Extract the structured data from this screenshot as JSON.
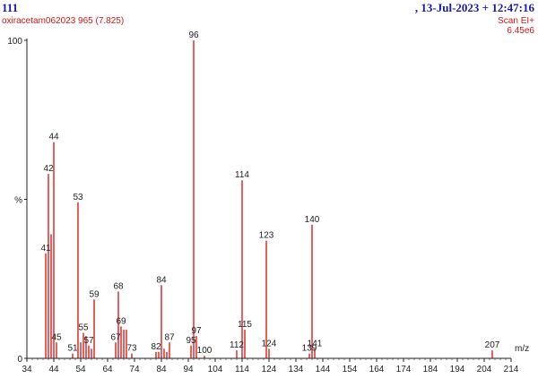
{
  "header": {
    "sample_id": "111",
    "sample_name": "oxiracetam062023 965 (7.825)",
    "date_time": ",  13-Jul-2023 + 12:47:16",
    "scan_mode": "Scan EI+",
    "intensity": "6.45e6"
  },
  "colors": {
    "bars": "#e23a3a",
    "axis": "#222222",
    "header_blue": "#1a1aa8",
    "header_red": "#d01818"
  },
  "chart_data": {
    "type": "bar",
    "title": "",
    "xlabel": "m/z",
    "ylabel": "%",
    "xlim": [
      34,
      214
    ],
    "ylim": [
      0,
      100
    ],
    "x_ticks": [
      34,
      44,
      54,
      64,
      74,
      84,
      94,
      104,
      114,
      124,
      134,
      144,
      154,
      164,
      174,
      184,
      194,
      204,
      214
    ],
    "x_tick_labels": [
      "34",
      "44",
      "54",
      "64",
      "74",
      "84",
      "94",
      "104",
      "114",
      "124",
      "134",
      "144",
      "154",
      "164",
      "174",
      "184",
      "194",
      "204",
      "214"
    ],
    "y_ticks": [
      0,
      50,
      100
    ],
    "y_tick_labels": [
      "0",
      "%",
      "100"
    ],
    "peaks": [
      {
        "mz": 41,
        "rel": 33
      },
      {
        "mz": 42,
        "rel": 58
      },
      {
        "mz": 43,
        "rel": 39
      },
      {
        "mz": 44,
        "rel": 68
      },
      {
        "mz": 45,
        "rel": 5
      },
      {
        "mz": 51,
        "rel": 1.5
      },
      {
        "mz": 53,
        "rel": 49
      },
      {
        "mz": 54,
        "rel": 5
      },
      {
        "mz": 55,
        "rel": 8
      },
      {
        "mz": 56,
        "rel": 7
      },
      {
        "mz": 57,
        "rel": 4
      },
      {
        "mz": 58,
        "rel": 3
      },
      {
        "mz": 59,
        "rel": 18.5
      },
      {
        "mz": 67,
        "rel": 5
      },
      {
        "mz": 68,
        "rel": 21
      },
      {
        "mz": 69,
        "rel": 10
      },
      {
        "mz": 70,
        "rel": 9
      },
      {
        "mz": 71,
        "rel": 9
      },
      {
        "mz": 73,
        "rel": 1.5
      },
      {
        "mz": 82,
        "rel": 2
      },
      {
        "mz": 83,
        "rel": 2
      },
      {
        "mz": 84,
        "rel": 23
      },
      {
        "mz": 85,
        "rel": 3
      },
      {
        "mz": 86,
        "rel": 2
      },
      {
        "mz": 87,
        "rel": 5
      },
      {
        "mz": 95,
        "rel": 4
      },
      {
        "mz": 96,
        "rel": 100
      },
      {
        "mz": 97,
        "rel": 7
      },
      {
        "mz": 100,
        "rel": 0.8
      },
      {
        "mz": 112,
        "rel": 2.5
      },
      {
        "mz": 114,
        "rel": 56
      },
      {
        "mz": 115,
        "rel": 9
      },
      {
        "mz": 123,
        "rel": 37
      },
      {
        "mz": 124,
        "rel": 3
      },
      {
        "mz": 139,
        "rel": 1.5
      },
      {
        "mz": 140,
        "rel": 42
      },
      {
        "mz": 141,
        "rel": 3
      },
      {
        "mz": 207,
        "rel": 2.5
      }
    ],
    "peak_labels": [
      {
        "mz": 41,
        "text": "41",
        "ty": 33
      },
      {
        "mz": 42,
        "text": "42",
        "ty": 58
      },
      {
        "mz": 44,
        "text": "44",
        "ty": 68
      },
      {
        "mz": 45,
        "text": "45",
        "ty": 5
      },
      {
        "mz": 51,
        "text": "51",
        "ty": 1.5
      },
      {
        "mz": 53,
        "text": "53",
        "ty": 49
      },
      {
        "mz": 55,
        "text": "55",
        "ty": 8
      },
      {
        "mz": 57,
        "text": "57",
        "ty": 4
      },
      {
        "mz": 59,
        "text": "59",
        "ty": 18.5
      },
      {
        "mz": 67,
        "text": "67",
        "ty": 5
      },
      {
        "mz": 68,
        "text": "68",
        "ty": 21
      },
      {
        "mz": 69,
        "text": "69",
        "ty": 10
      },
      {
        "mz": 73,
        "text": "73",
        "ty": 1.5
      },
      {
        "mz": 82,
        "text": "82",
        "ty": 2
      },
      {
        "mz": 84,
        "text": "84",
        "ty": 23
      },
      {
        "mz": 87,
        "text": "87",
        "ty": 5
      },
      {
        "mz": 95,
        "text": "95",
        "ty": 4
      },
      {
        "mz": 96,
        "text": "96",
        "ty": 100
      },
      {
        "mz": 97,
        "text": "97",
        "ty": 7
      },
      {
        "mz": 100,
        "text": "100",
        "ty": 0.8
      },
      {
        "mz": 112,
        "text": "112",
        "ty": 2.5
      },
      {
        "mz": 114,
        "text": "114",
        "ty": 56
      },
      {
        "mz": 115,
        "text": "115",
        "ty": 9
      },
      {
        "mz": 123,
        "text": "123",
        "ty": 37
      },
      {
        "mz": 124,
        "text": "124",
        "ty": 3
      },
      {
        "mz": 139,
        "text": "139",
        "ty": 1.5
      },
      {
        "mz": 140,
        "text": "140",
        "ty": 42
      },
      {
        "mz": 141,
        "text": "141",
        "ty": 3
      },
      {
        "mz": 207,
        "text": "207",
        "ty": 2.5
      }
    ]
  }
}
